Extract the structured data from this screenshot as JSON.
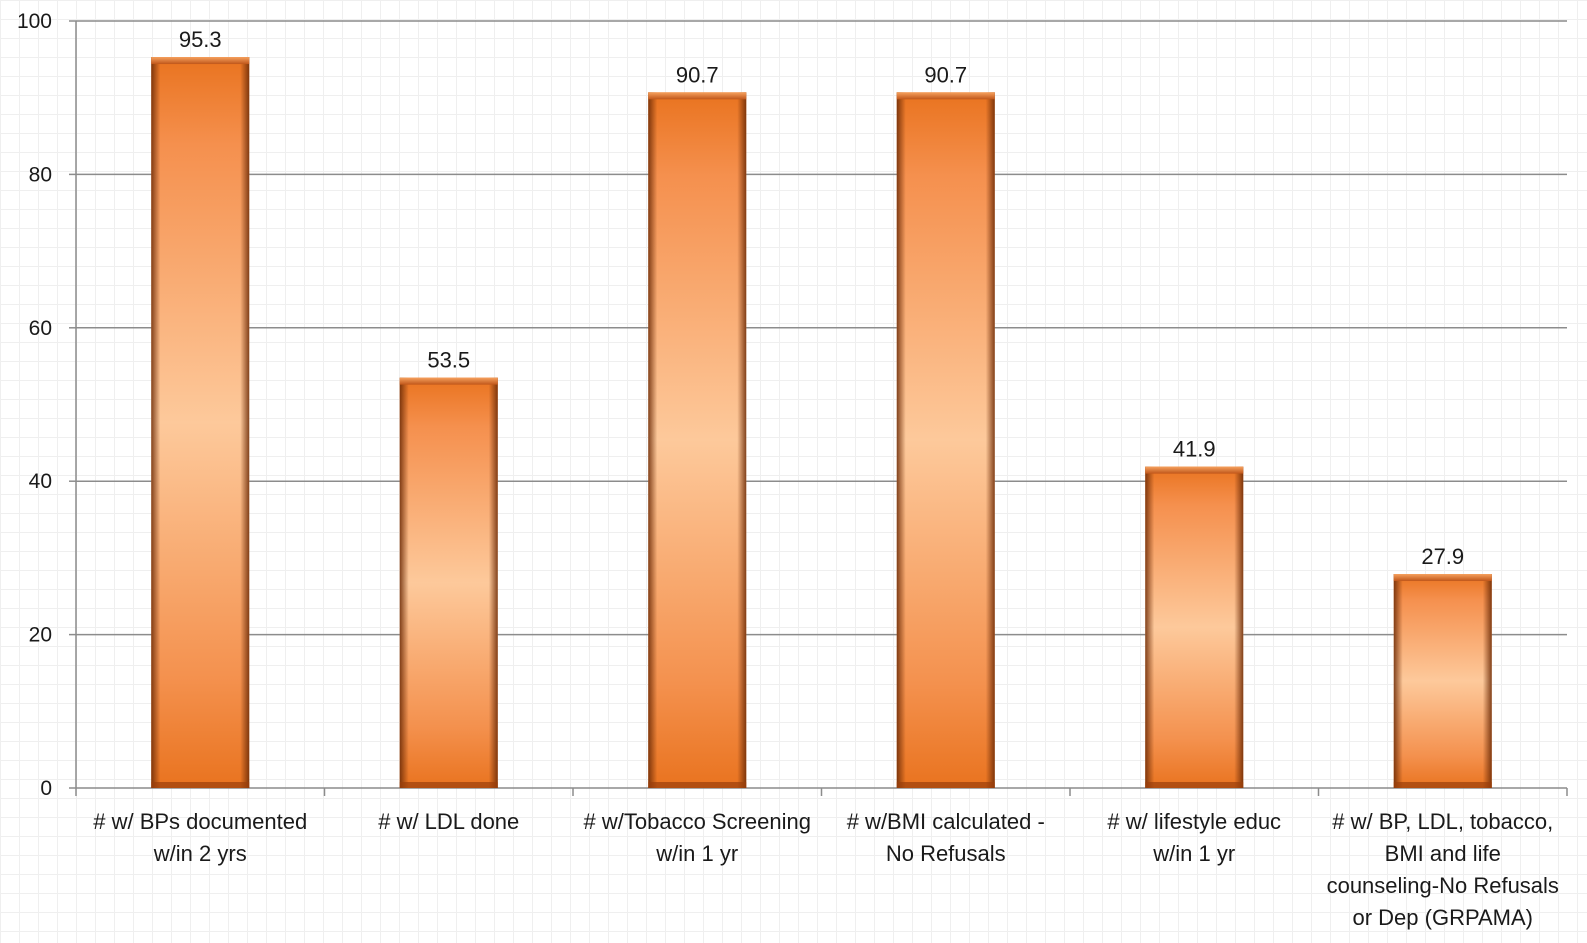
{
  "chart_data": {
    "type": "bar",
    "categories": [
      [
        "# w/ BPs documented",
        "w/in 2 yrs"
      ],
      [
        "# w/ LDL done"
      ],
      [
        "# w/Tobacco Screening",
        "w/in 1 yr"
      ],
      [
        "# w/BMI calculated -",
        "No Refusals"
      ],
      [
        "# w/ lifestyle educ",
        "w/in 1 yr"
      ],
      [
        "# w/ BP, LDL, tobacco,",
        "BMI and life",
        "counseling-No Refusals",
        "or Dep (GRPAMA)"
      ]
    ],
    "values": [
      95.3,
      53.5,
      90.7,
      90.7,
      41.9,
      27.9
    ],
    "data_labels": [
      "95.3",
      "53.5",
      "90.7",
      "90.7",
      "41.9",
      "27.9"
    ],
    "ylim": [
      0,
      100
    ],
    "yticks": [
      0,
      20,
      40,
      60,
      80,
      100
    ],
    "title": "",
    "xlabel": "",
    "ylabel": "",
    "grid": true,
    "legend": "none",
    "colors": {
      "bar_light": "#fdc596",
      "bar_mid": "#f7934e",
      "bar_dark": "#e9731f",
      "bar_edge": "#6b2a06",
      "gridline": "#8c8c8c",
      "axis": "#8c8c8c",
      "text": "#1a1a1a"
    }
  }
}
